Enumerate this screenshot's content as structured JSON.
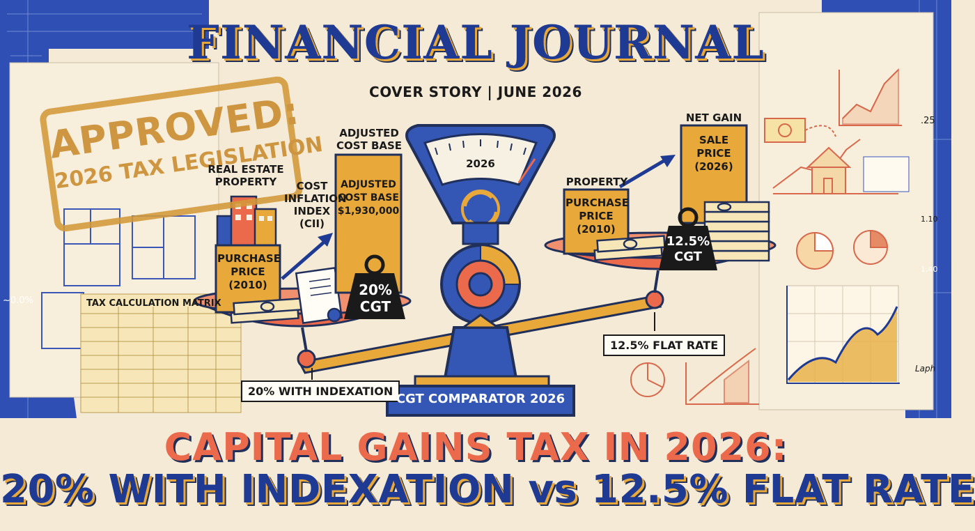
{
  "masthead": {
    "title": "FINANCIAL JOURNAL",
    "kicker": "COVER STORY | JUNE 2026"
  },
  "stamp": {
    "line1": "APPROVED:",
    "line2": "2026 TAX LEGISLATION"
  },
  "left_pan": {
    "property_label": "REAL ESTATE PROPERTY",
    "purchase_box": "PURCHASE PRICE (2010)",
    "index_label": "COST INFLATION INDEX (CII)",
    "acb_title": "ADJUSTED COST BASE",
    "acb_box": "ADJUSTED COST BASE $1,930,000",
    "weight": "20% CGT",
    "caption": "20% WITH INDEXATION"
  },
  "right_pan": {
    "property_label": "PROPERTY",
    "purchase_box": "PURCHASE PRICE (2010)",
    "net_gain_label": "NET GAIN",
    "sale_box": "SALE PRICE (2026)",
    "weight": "12.5% CGT",
    "caption": "12.5% FLAT RATE"
  },
  "scale": {
    "dial_year": "2026",
    "base_label": "CGT COMPARATOR 2026"
  },
  "matrix": {
    "title": "TAX CALCULATION MATRIX"
  },
  "headline": {
    "line1": "CAPITAL GAINS TAX IN 2026:",
    "line2": "20% WITH INDEXATION vs 12.5% FLAT RATE"
  },
  "background_notes": {
    "left_pct": "~0.0%",
    "right_25": ".25",
    "right_110": "1.10",
    "right_140": "1.40",
    "formula_label": "Laph"
  },
  "colors": {
    "navy": "#1f3a93",
    "gold": "#e9a93a",
    "coral": "#ec6a4c",
    "cream": "#f4ead5",
    "ink": "#1a1a1a"
  }
}
